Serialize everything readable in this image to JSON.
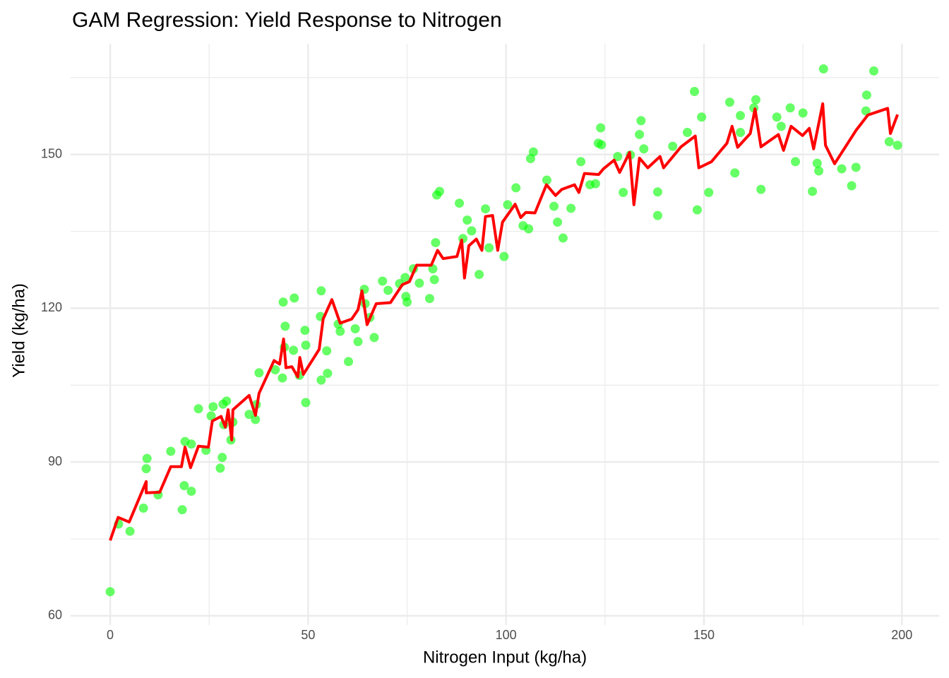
{
  "chart_data": {
    "type": "scatter",
    "title": "GAM Regression: Yield Response to Nitrogen",
    "xlabel": "Nitrogen Input (kg/ha)",
    "ylabel": "Yield (kg/ha)",
    "xlim": [
      -10,
      209.4
    ],
    "ylim": [
      58.2,
      171.6
    ],
    "xticks": [
      0,
      50,
      100,
      150,
      200
    ],
    "yticks": [
      60,
      90,
      120,
      150
    ],
    "xminorticks": [
      25,
      75,
      125,
      175
    ],
    "yminorticks": [
      75,
      105,
      135,
      165
    ],
    "grid": true,
    "series": [
      {
        "type": "scatter",
        "color": "#00ff00",
        "x": [
          0,
          2.1,
          5,
          8.4,
          9.1,
          9.3,
          12.1,
          15.3,
          18.2,
          18.7,
          18.9,
          20.5,
          20.5,
          22.3,
          24.2,
          25.5,
          26,
          27.8,
          28.3,
          28.5,
          29.4,
          28.7,
          30.5,
          31,
          35.1,
          36.7,
          36.9,
          37.6,
          41.7,
          43.7,
          44.2,
          43.5,
          44,
          46.5,
          46.3,
          47.8,
          49.2,
          49.4,
          49.4,
          53.3,
          53.1,
          53.3,
          54.7,
          54.9,
          57.6,
          58.1,
          60.2,
          61.9,
          62.6,
          64.2,
          64.4,
          65.6,
          66.7,
          68.8,
          70.2,
          73.1,
          74.5,
          74.7,
          75,
          76.6,
          78.1,
          80.7,
          81.5,
          82.2,
          82.5,
          83.2,
          81.9,
          88.2,
          89.1,
          90.2,
          91.3,
          93.2,
          94.8,
          95.7,
          99.5,
          100.4,
          102.5,
          104.3,
          105.7,
          106.2,
          106.9,
          110.3,
          112.1,
          113,
          114.4,
          116.4,
          118.9,
          121.2,
          122.6,
          123.3,
          123.9,
          124.1,
          128.2,
          129.6,
          131.4,
          133.7,
          134.1,
          134.8,
          138.3,
          138.3,
          142.1,
          145.8,
          147.6,
          148.3,
          149.4,
          151.2,
          156.5,
          157.8,
          159.2,
          159.2,
          162.6,
          163.1,
          164.4,
          168.4,
          169.5,
          171.8,
          173.1,
          175,
          177.4,
          178.6,
          179,
          180.2,
          184.8,
          187.3,
          188.4,
          191.1,
          190.9,
          192.9,
          196.8,
          198.9
        ],
        "values": [
          64.7,
          77.9,
          76.5,
          81,
          88.7,
          90.7,
          83.6,
          92.1,
          80.7,
          85.4,
          94,
          84.3,
          93.5,
          100.4,
          92.3,
          99,
          100.8,
          88.8,
          90.9,
          101.3,
          101.9,
          97.3,
          94.3,
          97.8,
          99.3,
          98.3,
          101.2,
          107.4,
          108,
          121.2,
          116.5,
          106.4,
          112.4,
          122,
          111.8,
          106.9,
          115.7,
          112.8,
          101.6,
          123.4,
          118.4,
          106,
          111.7,
          107.3,
          116.9,
          115.5,
          109.6,
          116,
          113.5,
          123.7,
          120.9,
          118.2,
          114.3,
          125.3,
          123.5,
          124.8,
          126,
          122.3,
          121.2,
          127.7,
          124.9,
          121.9,
          127.7,
          132.8,
          142.1,
          142.8,
          125.6,
          140.5,
          133.6,
          137.2,
          135.1,
          126.6,
          139.4,
          131.8,
          130.1,
          140.2,
          143.5,
          136.1,
          135.5,
          149.2,
          150.5,
          145,
          139.9,
          136.8,
          133.7,
          139.5,
          148.6,
          144.1,
          144.3,
          152.2,
          155.2,
          151.9,
          149.6,
          142.6,
          149.9,
          153.9,
          156.6,
          151.1,
          142.7,
          138.1,
          151.6,
          154.3,
          162.3,
          139.2,
          157.3,
          142.6,
          160.2,
          146.4,
          157.6,
          154.3,
          159.1,
          160.7,
          143.2,
          157.3,
          155.5,
          159.1,
          148.6,
          158.1,
          142.8,
          148.3,
          146.8,
          166.7,
          147.2,
          143.9,
          147.5,
          161.6,
          158.5,
          166.3,
          152.5,
          151.8
        ]
      },
      {
        "type": "line",
        "color": "#ff0000",
        "x": [
          0,
          2,
          4.8,
          9.1,
          9.1,
          12.5,
          15.3,
          18,
          18.9,
          20.3,
          22.3,
          24.8,
          25.8,
          28,
          29.1,
          29.8,
          30.7,
          31,
          35.1,
          36.7,
          37.6,
          41.4,
          42.8,
          43.8,
          44.4,
          45.9,
          47.4,
          47.9,
          48.8,
          52.8,
          53.8,
          56,
          58.1,
          61,
          62.6,
          63.6,
          64.9,
          67.2,
          70.8,
          73.8,
          75.6,
          77.4,
          81.1,
          82.7,
          84.1,
          87.6,
          88.8,
          89.5,
          90.6,
          92.5,
          93.9,
          94.8,
          96.6,
          97.9,
          99.1,
          102.3,
          103.7,
          105,
          107.3,
          110.2,
          112.5,
          114.1,
          117.3,
          118.4,
          119.8,
          123.4,
          124.6,
          127.3,
          128.7,
          131.2,
          132.3,
          133.7,
          135.8,
          138.9,
          139.8,
          144.2,
          147.8,
          148.7,
          151.9,
          155.8,
          157.1,
          158.5,
          161.7,
          162.9,
          164.4,
          168.8,
          170.1,
          172,
          174.9,
          176.6,
          177.7,
          180,
          180.7,
          183,
          188.4,
          191.4,
          196.4,
          197.1,
          198.9
        ],
        "values": [
          74.7,
          79.2,
          78.3,
          86.2,
          84,
          84.1,
          89.1,
          89.1,
          92.9,
          88.9,
          93.1,
          92.9,
          98,
          98.9,
          96.8,
          100.2,
          94.3,
          100.2,
          103,
          99.1,
          103.4,
          109.8,
          109.1,
          114,
          108.4,
          108.6,
          106.6,
          110.4,
          107.1,
          112,
          117.9,
          121.7,
          117.1,
          117.9,
          119.7,
          123.4,
          116.8,
          120.9,
          121.1,
          124.6,
          125.2,
          128.4,
          128.4,
          131.3,
          129.7,
          130.1,
          133.3,
          125.9,
          132.2,
          133.5,
          131.3,
          137.9,
          138.1,
          131.3,
          136.8,
          140.3,
          137.7,
          138.7,
          138.6,
          144.1,
          142,
          143.2,
          144.1,
          142.6,
          146.3,
          146.1,
          147.2,
          148.9,
          146.5,
          150.4,
          140.2,
          149.3,
          147.4,
          149.6,
          147.4,
          151.5,
          153.6,
          147.4,
          148.6,
          152.2,
          155.5,
          151.4,
          154.1,
          158.9,
          151.5,
          153.9,
          150.8,
          155.5,
          153.7,
          155.1,
          151.1,
          159.9,
          151.8,
          148.2,
          154.7,
          157.7,
          159,
          154.1,
          157.8
        ]
      }
    ]
  }
}
